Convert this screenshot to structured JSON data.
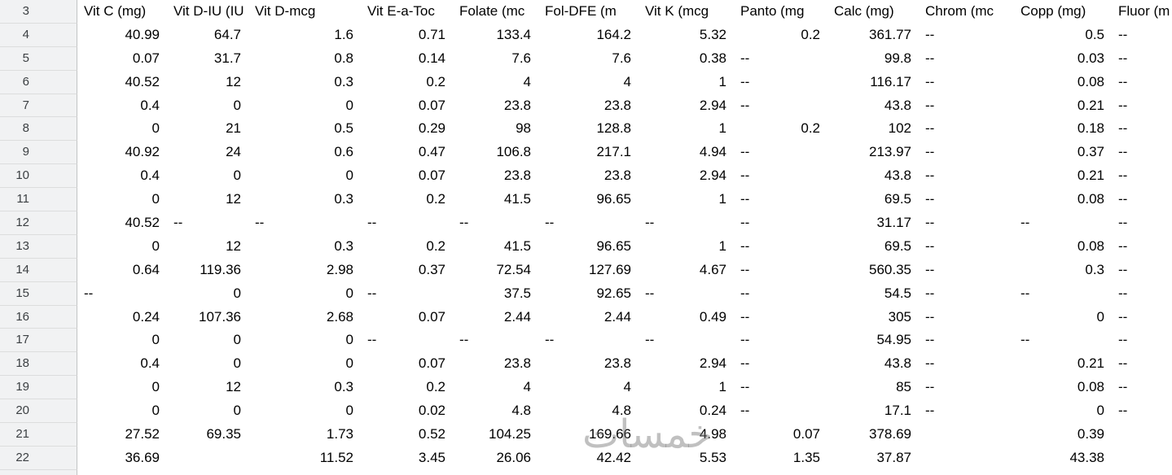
{
  "header": {
    "row_number": "3",
    "columns": [
      "Vit C (mg)",
      "Vit D-IU (IU",
      "Vit D-mcg",
      "Vit E-a-Toc",
      "Folate (mc",
      "Fol-DFE (m",
      "Vit K (mcg",
      "Panto (mg",
      "Calc (mg)",
      "Chrom (mc",
      "Copp (mg)",
      "Fluor (m"
    ]
  },
  "rows": [
    {
      "n": "4",
      "cells": [
        "40.99",
        "64.7",
        "1.6",
        "0.71",
        "133.4",
        "164.2",
        "5.32",
        "0.2",
        "361.77",
        "--",
        "0.5",
        "--"
      ]
    },
    {
      "n": "5",
      "cells": [
        "0.07",
        "31.7",
        "0.8",
        "0.14",
        "7.6",
        "7.6",
        "0.38",
        "--",
        "99.8",
        "--",
        "0.03",
        "--"
      ]
    },
    {
      "n": "6",
      "cells": [
        "40.52",
        "12",
        "0.3",
        "0.2",
        "4",
        "4",
        "1",
        "--",
        "116.17",
        "--",
        "0.08",
        "--"
      ]
    },
    {
      "n": "7",
      "cells": [
        "0.4",
        "0",
        "0",
        "0.07",
        "23.8",
        "23.8",
        "2.94",
        "--",
        "43.8",
        "--",
        "0.21",
        "--"
      ]
    },
    {
      "n": "8",
      "cells": [
        "0",
        "21",
        "0.5",
        "0.29",
        "98",
        "128.8",
        "1",
        "0.2",
        "102",
        "--",
        "0.18",
        "--"
      ]
    },
    {
      "n": "9",
      "cells": [
        "40.92",
        "24",
        "0.6",
        "0.47",
        "106.8",
        "217.1",
        "4.94",
        "--",
        "213.97",
        "--",
        "0.37",
        "--"
      ]
    },
    {
      "n": "10",
      "cells": [
        "0.4",
        "0",
        "0",
        "0.07",
        "23.8",
        "23.8",
        "2.94",
        "--",
        "43.8",
        "--",
        "0.21",
        "--"
      ]
    },
    {
      "n": "11",
      "cells": [
        "0",
        "12",
        "0.3",
        "0.2",
        "41.5",
        "96.65",
        "1",
        "--",
        "69.5",
        "--",
        "0.08",
        "--"
      ]
    },
    {
      "n": "12",
      "cells": [
        "40.52",
        "--",
        "--",
        "--",
        "--",
        "--",
        "--",
        "--",
        "31.17",
        "--",
        "--",
        "--"
      ]
    },
    {
      "n": "13",
      "cells": [
        "0",
        "12",
        "0.3",
        "0.2",
        "41.5",
        "96.65",
        "1",
        "--",
        "69.5",
        "--",
        "0.08",
        "--"
      ]
    },
    {
      "n": "14",
      "cells": [
        "0.64",
        "119.36",
        "2.98",
        "0.37",
        "72.54",
        "127.69",
        "4.67",
        "--",
        "560.35",
        "--",
        "0.3",
        "--"
      ]
    },
    {
      "n": "15",
      "cells": [
        "--",
        "0",
        "0",
        "--",
        "37.5",
        "92.65",
        "--",
        "--",
        "54.5",
        "--",
        "--",
        "--"
      ]
    },
    {
      "n": "16",
      "cells": [
        "0.24",
        "107.36",
        "2.68",
        "0.07",
        "2.44",
        "2.44",
        "0.49",
        "--",
        "305",
        "--",
        "0",
        "--"
      ]
    },
    {
      "n": "17",
      "cells": [
        "0",
        "0",
        "0",
        "--",
        "--",
        "--",
        "--",
        "--",
        "54.95",
        "--",
        "--",
        "--"
      ]
    },
    {
      "n": "18",
      "cells": [
        "0.4",
        "0",
        "0",
        "0.07",
        "23.8",
        "23.8",
        "2.94",
        "--",
        "43.8",
        "--",
        "0.21",
        "--"
      ]
    },
    {
      "n": "19",
      "cells": [
        "0",
        "12",
        "0.3",
        "0.2",
        "4",
        "4",
        "1",
        "--",
        "85",
        "--",
        "0.08",
        "--"
      ]
    },
    {
      "n": "20",
      "cells": [
        "0",
        "0",
        "0",
        "0.02",
        "4.8",
        "4.8",
        "0.24",
        "--",
        "17.1",
        "--",
        "0",
        "--"
      ]
    },
    {
      "n": "21",
      "cells": [
        "27.52",
        "69.35",
        "1.73",
        "0.52",
        "104.25",
        "169.66",
        "4.98",
        "0.07",
        "378.69",
        "",
        "0.39",
        ""
      ]
    },
    {
      "n": "22",
      "cells": [
        "36.69",
        "",
        "11.52",
        "3.45",
        "26.06",
        "42.42",
        "5.53",
        "1.35",
        "37.87",
        "",
        "43.38",
        ""
      ]
    }
  ],
  "watermark": "خمسات",
  "colors": {
    "row_header_bg": "#f1f2f3",
    "row_header_border": "#c2c3c4",
    "cell_text": "#000000",
    "row_number_text": "#3c4043"
  }
}
